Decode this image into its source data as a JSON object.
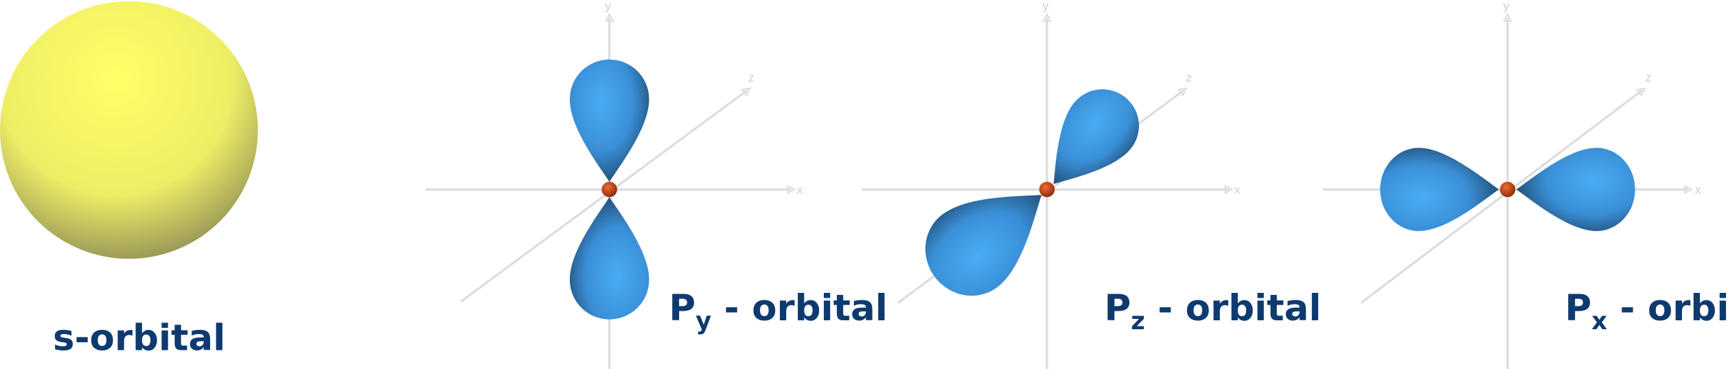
{
  "colors": {
    "label": "#0e3a70",
    "axis": "#dcdcdc",
    "s_orbital": "#f7f564",
    "p_lobe": "#3f9fe8",
    "nucleus": "#d84a1a"
  },
  "s_orbital": {
    "label": "s-orbital"
  },
  "py_orbital": {
    "label_main": "P",
    "label_sub": "y",
    "label_rest": " - orbital",
    "axes": {
      "x": "x",
      "y": "y",
      "z": "z"
    }
  },
  "pz_orbital": {
    "label_main": "P",
    "label_sub": "z",
    "label_rest": " - orbital",
    "axes": {
      "x": "x",
      "y": "y",
      "z": "z"
    }
  },
  "px_orbital": {
    "label_main": "P",
    "label_sub": "x",
    "label_rest": " - orbital",
    "axes": {
      "x": "x",
      "y": "y",
      "z": "z"
    }
  }
}
